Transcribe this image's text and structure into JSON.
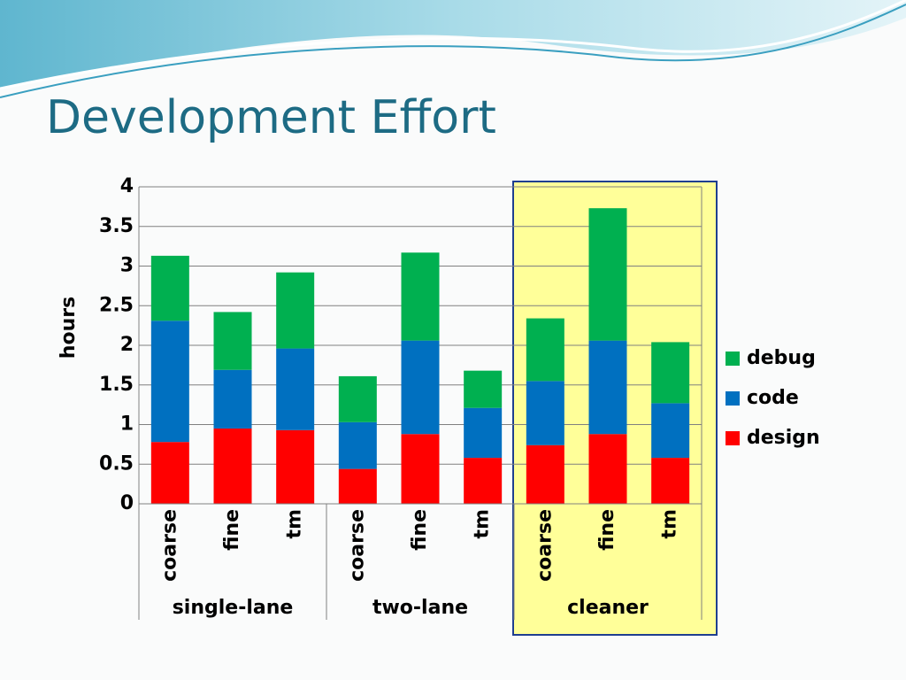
{
  "chart_data": {
    "type": "stacked_bar",
    "title": "Development Effort",
    "y_label": "hours",
    "categories": [
      "coarse",
      "fine",
      "tm",
      "coarse",
      "fine",
      "tm",
      "coarse",
      "fine",
      "tm"
    ],
    "groups": [
      "single-lane",
      "two-lane",
      "cleaner"
    ],
    "series": [
      {
        "name": "design",
        "color": "#ff0000",
        "values": [
          0.78,
          0.95,
          0.93,
          0.44,
          0.88,
          0.58,
          0.74,
          0.88,
          0.58
        ]
      },
      {
        "name": "code",
        "color": "#0070c0",
        "values": [
          1.53,
          0.74,
          1.03,
          0.59,
          1.18,
          0.63,
          0.81,
          1.18,
          0.69
        ]
      },
      {
        "name": "debug",
        "color": "#00b050",
        "values": [
          0.82,
          0.73,
          0.96,
          0.58,
          1.11,
          0.47,
          0.79,
          1.67,
          0.77
        ]
      }
    ],
    "ylim": [
      0,
      4
    ],
    "yticks": [
      0,
      0.5,
      1,
      1.5,
      2,
      2.5,
      3,
      3.5,
      4
    ],
    "grid": true,
    "legend": "right"
  }
}
